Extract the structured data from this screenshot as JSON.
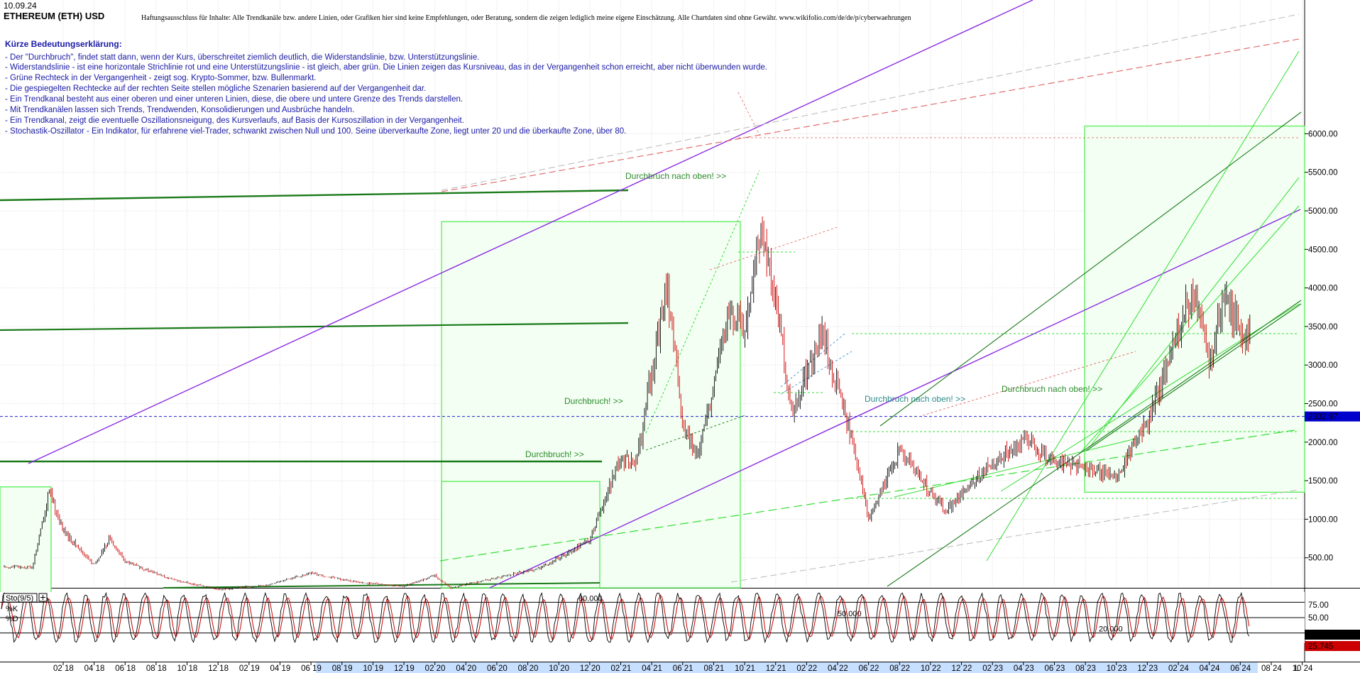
{
  "header": {
    "date": "10.09.24",
    "title": "ETHEREUM (ETH) USD",
    "disclaimer": "Haftungsausschluss für Inhalte: Alle Trendkanäle bzw. andere Linien, oder Grafiken hier sind keine Empfehlungen, oder Beratung, sondern die zeigen lediglich meine eigene Einschätzung. Alle Chartdaten sind ohne Gewähr. www.wikifolio.com/de/de/p/cyberwaehrungen"
  },
  "legend": {
    "heading": "Kürze Bedeutungserklärung:",
    "lines": [
      "- Der \"Durchbruch\", findet statt dann, wenn der Kurs, überschreitet ziemlich deutlich, die Widerstandslinie, bzw. Unterstützungslinie.",
      "- Widerstandslinie - ist eine horizontale Strichlinie rot und eine Unterstützungslinie - ist gleich, aber grün. Die Linien zeigen das Kursniveau, das in der Vergangenheit schon erreicht, aber nicht überwunden wurde.",
      "- Grüne Rechteck in der Vergangenheit - zeigt sog. Krypto-Sommer, bzw. Bullenmarkt.",
      "- Die gespiegelten Rechtecke auf der rechten Seite stellen mögliche Szenarien basierend auf der Vergangenheit dar.",
      "- Ein Trendkanal besteht aus einer oberen und einer unteren Linien, diese, die obere und untere Grenze des Trends darstellen.",
      "- Mit Trendkanälen lassen sich Trends, Trendwenden, Konsolidierungen und Ausbrüche handeln.",
      "- Ein Trendkanal, zeigt die eventuelle Oszillationsneigung, des Kursverlaufs, auf Basis der Kursoszillation in der Vergangenheit.",
      "- Stochastik-Oszillator - Ein Indikator, für erfahrene viel-Trader, schwankt zwischen Null und 100. Seine überverkaufte Zone, liegt unter 20 und die überkaufte Zone, über 80."
    ]
  },
  "colors": {
    "candle_up": "#000000",
    "candle_down": "#cc0000",
    "trend_purple": "#8b2be2",
    "trend_green_dark": "#1a7a1a",
    "trend_green_light": "#33dd33",
    "resistance_red": "#e06060",
    "guide_gray": "#b8b8b8",
    "current_price_line": "#2222cc",
    "current_price_tag": "#0000cc",
    "stoch_k": "#000000",
    "stoch_d": "#cc0000",
    "rect_fill": "#f2fff2",
    "rect_stroke": "#55ee55",
    "grid": "#d9d9d9",
    "axis_highlight": "#c8e0ff",
    "sto_tag_red": "#cc0000"
  },
  "annotations": [
    {
      "text": "Durchbruch nach oben! >>",
      "color": "#2e8b2e"
    },
    {
      "text": "Durchbruch! >>",
      "color": "#2e8b2e"
    },
    {
      "text": "Durchbruch! >>",
      "color": "#2e8b2e"
    },
    {
      "text": "Durchbruch nach oben! >>",
      "color": "#2e8b8b"
    },
    {
      "text": "Durchbruch nach oben! >>",
      "color": "#2e8b2e"
    }
  ],
  "chart_data": [
    {
      "type": "candlestick",
      "title": "ETHEREUM (ETH) USD",
      "yscale": "linear",
      "ylim": [
        0,
        6100
      ],
      "y_ticks": [
        "6000.00",
        "5500.00",
        "5000.00",
        "4500.00",
        "4000.00",
        "3500.00",
        "3000.00",
        "2500.00",
        "2000.00",
        "1500.00",
        "1000.00",
        "500.00"
      ],
      "x_ticks": [
        "02 18",
        "04 18",
        "06 18",
        "08 18",
        "10 18",
        "12 18",
        "02 19",
        "04 19",
        "06 19",
        "08 19",
        "10 19",
        "12 19",
        "02 20",
        "04 20",
        "06 20",
        "08 20",
        "10 20",
        "12 20",
        "02 21",
        "04 21",
        "06 21",
        "08 21",
        "10 21",
        "12 21",
        "02 22",
        "04 22",
        "06 22",
        "08 22",
        "10 22",
        "12 22",
        "02 23",
        "04 23",
        "06 23",
        "08 23",
        "10 23",
        "12 23",
        "02 24",
        "04 24",
        "06 24",
        "08 24",
        "10 24"
      ],
      "axis_end_label": "L",
      "current_price": 2332.97,
      "current_price_label": "2332.97",
      "grid": true,
      "price_path_approx": [
        {
          "x": "12 2017",
          "y": 380
        },
        {
          "x": "01 2018",
          "y": 1250
        },
        {
          "x": "01 2018",
          "y": 1400
        },
        {
          "x": "02 2018",
          "y": 850
        },
        {
          "x": "04 2018",
          "y": 400
        },
        {
          "x": "05 2018",
          "y": 750
        },
        {
          "x": "06 2018",
          "y": 450
        },
        {
          "x": "09 2018",
          "y": 220
        },
        {
          "x": "12 2018",
          "y": 90
        },
        {
          "x": "03 2019",
          "y": 140
        },
        {
          "x": "06 2019",
          "y": 300
        },
        {
          "x": "09 2019",
          "y": 180
        },
        {
          "x": "12 2019",
          "y": 130
        },
        {
          "x": "02 2020",
          "y": 270
        },
        {
          "x": "03 2020",
          "y": 110
        },
        {
          "x": "06 2020",
          "y": 240
        },
        {
          "x": "09 2020",
          "y": 380
        },
        {
          "x": "12 2020",
          "y": 740
        },
        {
          "x": "02 2021",
          "y": 1800
        },
        {
          "x": "03 2021",
          "y": 1700
        },
        {
          "x": "05 2021",
          "y": 4100
        },
        {
          "x": "06 2021",
          "y": 2200
        },
        {
          "x": "07 2021",
          "y": 1800
        },
        {
          "x": "09 2021",
          "y": 3700
        },
        {
          "x": "10 2021",
          "y": 3500
        },
        {
          "x": "11 2021",
          "y": 4800
        },
        {
          "x": "12 2021",
          "y": 3900
        },
        {
          "x": "01 2022",
          "y": 2400
        },
        {
          "x": "03 2022",
          "y": 3400
        },
        {
          "x": "05 2022",
          "y": 2000
        },
        {
          "x": "06 2022",
          "y": 1000
        },
        {
          "x": "08 2022",
          "y": 1900
        },
        {
          "x": "11 2022",
          "y": 1100
        },
        {
          "x": "01 2023",
          "y": 1550
        },
        {
          "x": "04 2023",
          "y": 2050
        },
        {
          "x": "06 2023",
          "y": 1750
        },
        {
          "x": "09 2023",
          "y": 1600
        },
        {
          "x": "10 2023",
          "y": 1550
        },
        {
          "x": "12 2023",
          "y": 2250
        },
        {
          "x": "03 2024",
          "y": 4000
        },
        {
          "x": "04 2024",
          "y": 3000
        },
        {
          "x": "05 2024",
          "y": 3900
        },
        {
          "x": "06 2024",
          "y": 3400
        },
        {
          "x": "07 2024",
          "y": 3300
        },
        {
          "x": "08 2024",
          "y": 2500
        },
        {
          "x": "09 2024",
          "y": 2333
        }
      ]
    },
    {
      "type": "line",
      "title": "Sto(9/5)",
      "series": [
        {
          "name": "%K",
          "last_value": 28.336,
          "last_label": "28.336"
        },
        {
          "name": "%D",
          "last_value": 25.745,
          "last_label": "25.745"
        }
      ],
      "levels": [
        {
          "value": 80,
          "label": "80.000"
        },
        {
          "value": 50,
          "label": "50.000"
        },
        {
          "value": 20,
          "label": "20.000"
        }
      ],
      "y_ticks": [
        "75.00",
        "50.00"
      ],
      "ylim": [
        0,
        100
      ]
    }
  ]
}
